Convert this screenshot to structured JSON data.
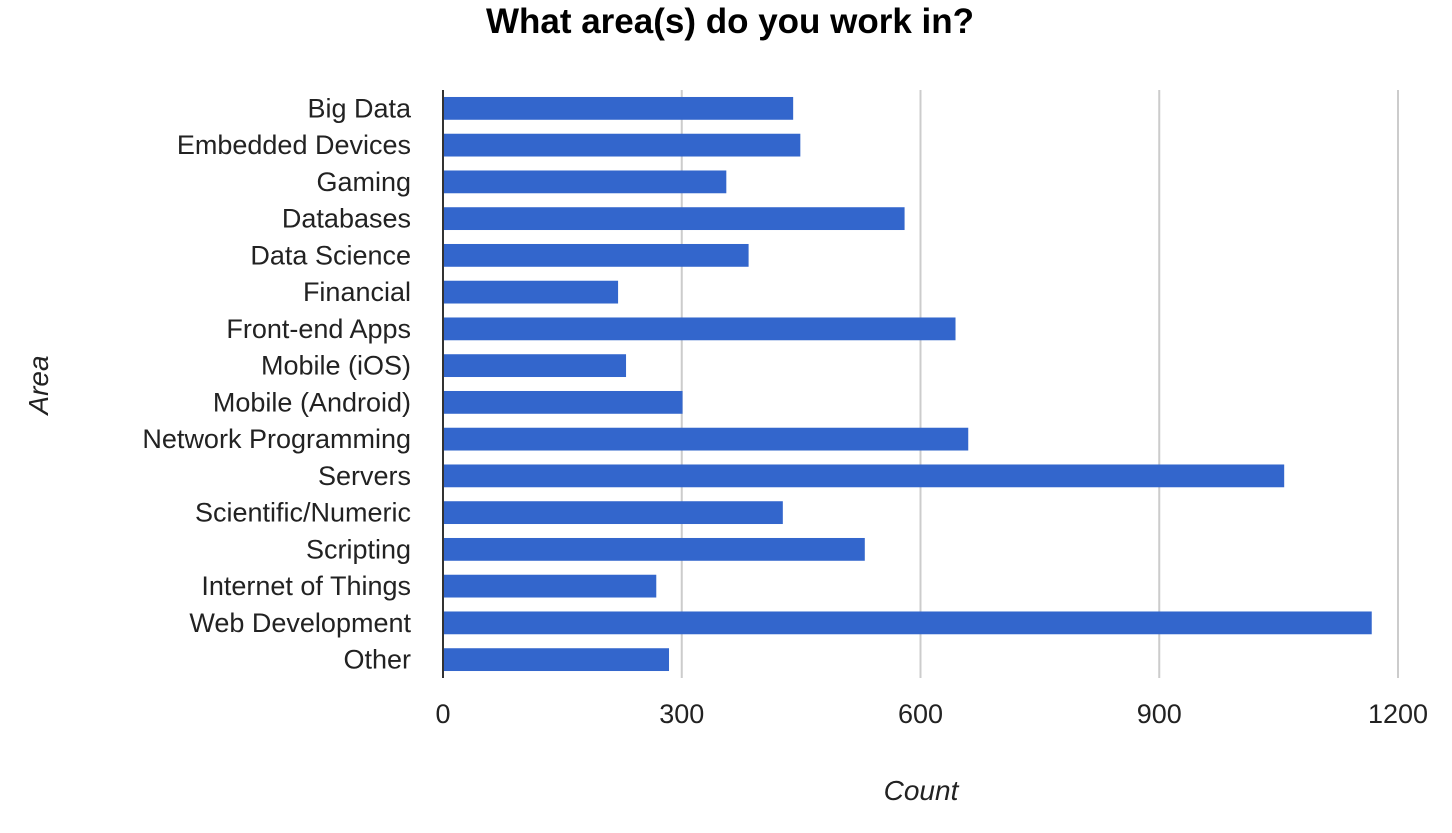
{
  "chart_data": {
    "type": "bar",
    "orientation": "horizontal",
    "title": "What area(s) do you work in?",
    "xlabel": "Count",
    "ylabel": "Area",
    "categories": [
      "Big Data",
      "Embedded Devices",
      "Gaming",
      "Databases",
      "Data Science",
      "Financial",
      "Front-end Apps",
      "Mobile (iOS)",
      "Mobile (Android)",
      "Network Programming",
      "Servers",
      "Scientific/Numeric",
      "Scripting",
      "Internet of Things",
      "Web Development",
      "Other"
    ],
    "values": [
      440,
      449,
      356,
      580,
      384,
      220,
      644,
      230,
      301,
      660,
      1057,
      427,
      530,
      268,
      1167,
      284
    ],
    "xlim": [
      0,
      1200
    ],
    "x_ticks": [
      "0",
      "300",
      "600",
      "900",
      "1200"
    ],
    "x_tick_values": [
      0,
      300,
      600,
      900,
      1200
    ],
    "grid": "vertical",
    "legend": "none",
    "colors": {
      "bar": "#3366cc",
      "grid": "#cccccc",
      "axis": "#333333"
    }
  }
}
